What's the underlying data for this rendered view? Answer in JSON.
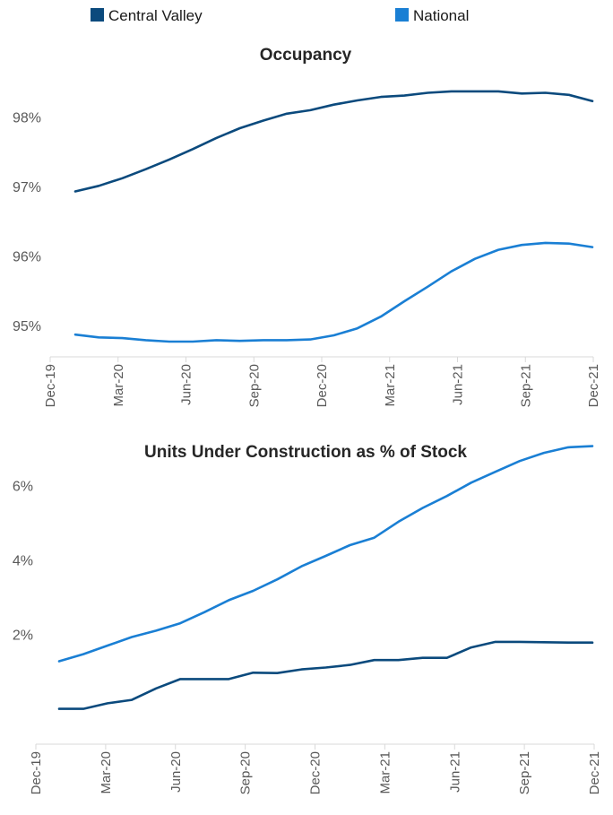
{
  "legend": [
    {
      "label": "Central Valley",
      "color": "#0b4a7d"
    },
    {
      "label": "National",
      "color": "#1a7fd4"
    }
  ],
  "chart_data": [
    {
      "type": "line",
      "title": "Occupancy",
      "x": [
        "Jan-20",
        "Feb-20",
        "Mar-20",
        "Apr-20",
        "May-20",
        "Jun-20",
        "Jul-20",
        "Aug-20",
        "Sep-20",
        "Oct-20",
        "Nov-20",
        "Dec-20",
        "Jan-21",
        "Feb-21",
        "Mar-21",
        "Apr-21",
        "May-21",
        "Jun-21",
        "Jul-21",
        "Aug-21",
        "Sep-21",
        "Oct-21",
        "Nov-21"
      ],
      "x_tick_labels": [
        "Dec-19",
        "Mar-20",
        "Jun-20",
        "Sep-20",
        "Dec-20",
        "Mar-21",
        "Jun-21",
        "Sep-21",
        "Dec-21"
      ],
      "y_tick_labels": [
        "95%",
        "96%",
        "97%",
        "98%"
      ],
      "y_ticks": [
        95,
        96,
        97,
        98
      ],
      "ylim": [
        94.55,
        98.55
      ],
      "series": [
        {
          "name": "Central Valley",
          "color": "#0b4a7d",
          "values": [
            96.93,
            97.01,
            97.12,
            97.25,
            97.39,
            97.54,
            97.7,
            97.84,
            97.95,
            98.05,
            98.1,
            98.18,
            98.24,
            98.29,
            98.31,
            98.35,
            98.37,
            98.37,
            98.37,
            98.34,
            98.35,
            98.32,
            98.23
          ]
        },
        {
          "name": "National",
          "color": "#1a7fd4",
          "values": [
            94.87,
            94.83,
            94.82,
            94.79,
            94.77,
            94.77,
            94.79,
            94.78,
            94.79,
            94.79,
            94.8,
            94.86,
            94.96,
            95.13,
            95.35,
            95.56,
            95.78,
            95.96,
            96.09,
            96.16,
            96.19,
            96.18,
            96.13
          ]
        }
      ]
    },
    {
      "type": "line",
      "title": "Units Under Construction as % of Stock",
      "x": [
        "Jan-20",
        "Feb-20",
        "Mar-20",
        "Apr-20",
        "May-20",
        "Jun-20",
        "Jul-20",
        "Aug-20",
        "Sep-20",
        "Oct-20",
        "Nov-20",
        "Dec-20",
        "Jan-21",
        "Feb-21",
        "Mar-21",
        "Apr-21",
        "May-21",
        "Jun-21",
        "Jul-21",
        "Aug-21",
        "Sep-21",
        "Oct-21",
        "Nov-21"
      ],
      "x_tick_labels": [
        "Dec-19",
        "Mar-20",
        "Jun-20",
        "Sep-20",
        "Dec-20",
        "Mar-21",
        "Jun-21",
        "Sep-21",
        "Dec-21"
      ],
      "y_tick_labels": [
        "2%",
        "4%",
        "6%"
      ],
      "y_ticks": [
        2,
        4,
        6
      ],
      "ylim": [
        -0.95,
        6.4
      ],
      "series": [
        {
          "name": "Central Valley",
          "color": "#0b4a7d",
          "values": [
            0.0,
            0.0,
            0.15,
            0.24,
            0.55,
            0.8,
            0.8,
            0.8,
            0.97,
            0.96,
            1.06,
            1.11,
            1.18,
            1.31,
            1.31,
            1.37,
            1.37,
            1.65,
            1.8,
            1.8,
            1.79,
            1.78,
            1.78
          ]
        },
        {
          "name": "National",
          "color": "#1a7fd4",
          "values": [
            1.28,
            1.47,
            1.7,
            1.93,
            2.1,
            2.3,
            2.6,
            2.92,
            3.17,
            3.48,
            3.83,
            4.11,
            4.4,
            4.6,
            5.03,
            5.4,
            5.72,
            6.08,
            6.37,
            6.66,
            6.88,
            7.03,
            7.06
          ]
        }
      ]
    }
  ]
}
